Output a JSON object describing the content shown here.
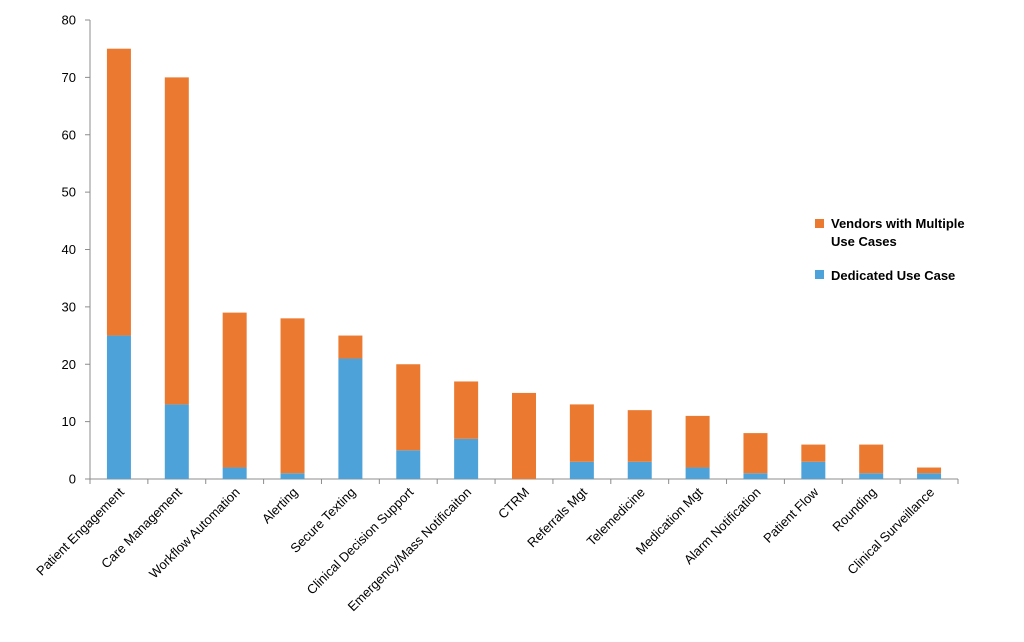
{
  "chart_data": {
    "type": "bar",
    "stacked": true,
    "categories": [
      "Patient Engagement",
      "Care Management",
      "Workflow Automation",
      "Alerting",
      "Secure Texting",
      "Clinical Decision Support",
      "Emergency/Mass Notificaiton",
      "CTRM",
      "Referrals Mgt",
      "Telemedicine",
      "Medication Mgt",
      "Alarm Notification",
      "Patient Flow",
      "Rounding",
      "Clinical Surveillance"
    ],
    "series": [
      {
        "name": "Dedicated Use Case",
        "color": "#4da3d9",
        "values": [
          25,
          13,
          2,
          1,
          21,
          5,
          7,
          0,
          3,
          3,
          2,
          1,
          3,
          1,
          1
        ]
      },
      {
        "name": "Vendors with Multiple Use Cases",
        "color": "#eb7a30",
        "values": [
          50,
          57,
          27,
          27,
          4,
          15,
          10,
          15,
          10,
          9,
          9,
          7,
          3,
          5,
          1
        ]
      }
    ],
    "y_ticks": [
      "0",
      "10",
      "20",
      "30",
      "40",
      "50",
      "60",
      "70",
      "80"
    ],
    "ylim": [
      0,
      80
    ],
    "grid": false,
    "legend": {
      "position": "right",
      "items": [
        {
          "label_lines": [
            "Vendors with Multiple",
            "Use Cases"
          ],
          "color": "#eb7a30"
        },
        {
          "label_lines": [
            "Dedicated Use Case"
          ],
          "color": "#4da3d9"
        }
      ]
    }
  }
}
